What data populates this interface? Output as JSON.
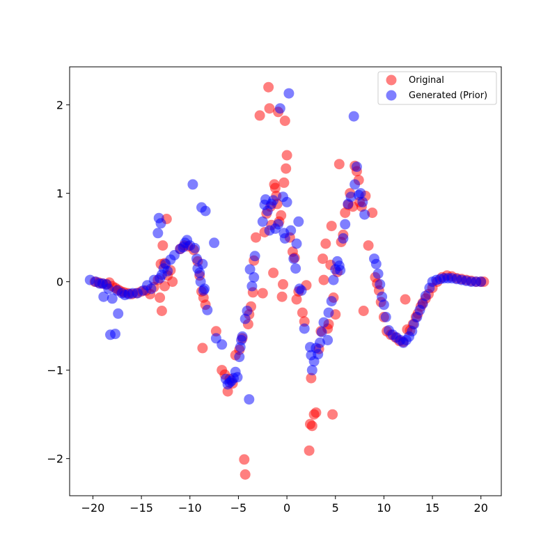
{
  "chart_data": {
    "type": "scatter",
    "xlim": [
      -22.4,
      22.1
    ],
    "ylim": [
      -2.42,
      2.43
    ],
    "grid": false,
    "legend_position": "top-right",
    "xticks": [
      -20,
      -15,
      -10,
      -5,
      0,
      5,
      10,
      15,
      20
    ],
    "xtick_labels": [
      "−20",
      "−15",
      "−10",
      "−5",
      "0",
      "5",
      "10",
      "15",
      "20"
    ],
    "yticks": [
      -2,
      -1,
      0,
      1,
      2
    ],
    "ytick_labels": [
      "−2",
      "−1",
      "0",
      "1",
      "2"
    ],
    "series": [
      {
        "name": "Original",
        "color": "#ff0000",
        "opacity": 0.5,
        "points": [
          [
            -19.8,
            0.0
          ],
          [
            -19.4,
            -0.01
          ],
          [
            -19.0,
            -0.02
          ],
          [
            -18.6,
            -0.03
          ],
          [
            -18.3,
            -0.01
          ],
          [
            -18.0,
            -0.05
          ],
          [
            -17.7,
            -0.07
          ],
          [
            -17.4,
            -0.09
          ],
          [
            -17.1,
            -0.11
          ],
          [
            -16.8,
            -0.12
          ],
          [
            -16.4,
            -0.13
          ],
          [
            -16.0,
            -0.14
          ],
          [
            -15.5,
            -0.13
          ],
          [
            -15.0,
            -0.11
          ],
          [
            -14.5,
            -0.1
          ],
          [
            -14.1,
            -0.14
          ],
          [
            -13.7,
            -0.06
          ],
          [
            -13.3,
            0.02
          ],
          [
            -13.1,
            -0.18
          ],
          [
            -12.9,
            -0.33
          ],
          [
            -13.0,
            0.2
          ],
          [
            -12.8,
            0.41
          ],
          [
            -12.6,
            0.21
          ],
          [
            -12.4,
            0.71
          ],
          [
            -12.6,
            -0.05
          ],
          [
            -12.3,
            0.07
          ],
          [
            -12.0,
            0.13
          ],
          [
            -11.8,
            0.0
          ],
          [
            -11.0,
            0.37
          ],
          [
            -10.6,
            0.41
          ],
          [
            -10.2,
            0.4
          ],
          [
            -9.6,
            0.36
          ],
          [
            -9.2,
            0.23
          ],
          [
            -9.0,
            0.07
          ],
          [
            -8.8,
            -0.11
          ],
          [
            -8.6,
            -0.18
          ],
          [
            -8.4,
            -0.26
          ],
          [
            -8.7,
            -0.75
          ],
          [
            -7.3,
            -0.56
          ],
          [
            -6.7,
            -1.0
          ],
          [
            -6.4,
            -1.05
          ],
          [
            -6.1,
            -1.24
          ],
          [
            -5.9,
            -1.1
          ],
          [
            -5.6,
            -1.15
          ],
          [
            -5.3,
            -0.83
          ],
          [
            -4.9,
            -0.77
          ],
          [
            -4.6,
            -0.64
          ],
          [
            -4.4,
            -2.01
          ],
          [
            -4.3,
            -2.18
          ],
          [
            -4.0,
            -0.48
          ],
          [
            -3.9,
            -0.37
          ],
          [
            -3.7,
            -0.28
          ],
          [
            -3.5,
            -0.12
          ],
          [
            -3.4,
            0.24
          ],
          [
            -3.2,
            0.5
          ],
          [
            -2.8,
            1.88
          ],
          [
            -2.5,
            -0.13
          ],
          [
            -2.3,
            0.56
          ],
          [
            -2.1,
            0.77
          ],
          [
            -1.9,
            2.2
          ],
          [
            -1.8,
            1.96
          ],
          [
            -1.7,
            0.85
          ],
          [
            -1.6,
            0.64
          ],
          [
            -1.4,
            0.1
          ],
          [
            -1.3,
            1.1
          ],
          [
            -1.2,
            1.06
          ],
          [
            -1.1,
            0.97
          ],
          [
            -1.0,
            0.88
          ],
          [
            -0.9,
            1.92
          ],
          [
            -0.8,
            0.68
          ],
          [
            -0.6,
            0.75
          ],
          [
            -0.5,
            -0.17
          ],
          [
            -0.4,
            -0.03
          ],
          [
            -0.3,
            1.12
          ],
          [
            -0.2,
            1.82
          ],
          [
            -0.1,
            1.28
          ],
          [
            0.0,
            1.43
          ],
          [
            0.3,
            0.5
          ],
          [
            0.6,
            0.34
          ],
          [
            0.8,
            0.27
          ],
          [
            1.0,
            -0.2
          ],
          [
            1.2,
            -0.11
          ],
          [
            1.6,
            -0.35
          ],
          [
            1.8,
            -0.45
          ],
          [
            2.0,
            -0.04
          ],
          [
            2.3,
            -1.91
          ],
          [
            2.4,
            -1.61
          ],
          [
            2.5,
            -1.09
          ],
          [
            2.6,
            -1.63
          ],
          [
            2.8,
            -1.5
          ],
          [
            3.0,
            -1.48
          ],
          [
            3.3,
            -0.76
          ],
          [
            3.5,
            -0.56
          ],
          [
            3.7,
            0.26
          ],
          [
            3.8,
            0.02
          ],
          [
            4.0,
            0.43
          ],
          [
            4.2,
            -0.53
          ],
          [
            4.3,
            -0.48
          ],
          [
            4.5,
            0.19
          ],
          [
            4.6,
            0.63
          ],
          [
            4.7,
            -1.5
          ],
          [
            4.8,
            -0.18
          ],
          [
            5.0,
            -0.37
          ],
          [
            5.2,
            0.11
          ],
          [
            5.4,
            1.33
          ],
          [
            5.6,
            0.45
          ],
          [
            5.8,
            0.53
          ],
          [
            6.0,
            0.78
          ],
          [
            6.3,
            0.87
          ],
          [
            6.5,
            1.0
          ],
          [
            6.8,
            0.85
          ],
          [
            7.0,
            1.31
          ],
          [
            7.2,
            1.25
          ],
          [
            7.4,
            1.15
          ],
          [
            7.5,
            0.9
          ],
          [
            7.7,
            0.85
          ],
          [
            7.9,
            -0.33
          ],
          [
            8.1,
            0.97
          ],
          [
            8.4,
            0.41
          ],
          [
            8.8,
            0.78
          ],
          [
            9.1,
            0.05
          ],
          [
            9.3,
            -0.02
          ],
          [
            9.5,
            -0.1
          ],
          [
            9.7,
            -0.23
          ],
          [
            10.0,
            -0.4
          ],
          [
            10.3,
            -0.56
          ],
          [
            10.7,
            -0.6
          ],
          [
            11.2,
            -0.63
          ],
          [
            11.6,
            -0.67
          ],
          [
            12.0,
            -0.68
          ],
          [
            12.2,
            -0.2
          ],
          [
            12.4,
            -0.54
          ],
          [
            12.7,
            -0.55
          ],
          [
            13.0,
            -0.48
          ],
          [
            13.3,
            -0.4
          ],
          [
            13.5,
            -0.36
          ],
          [
            13.8,
            -0.28
          ],
          [
            14.0,
            -0.24
          ],
          [
            14.3,
            -0.19
          ],
          [
            14.6,
            -0.14
          ],
          [
            15.0,
            -0.07
          ],
          [
            15.5,
            0.0
          ],
          [
            16.0,
            0.05
          ],
          [
            16.5,
            0.07
          ],
          [
            17.0,
            0.06
          ],
          [
            17.5,
            0.04
          ],
          [
            18.0,
            0.03
          ],
          [
            18.5,
            0.02
          ],
          [
            19.0,
            0.01
          ],
          [
            19.5,
            0.0
          ],
          [
            20.0,
            0.0
          ],
          [
            20.3,
            0.0
          ]
        ]
      },
      {
        "name": "Generated (Prior)",
        "color": "#0000ff",
        "opacity": 0.5,
        "points": [
          [
            -20.3,
            0.02
          ],
          [
            -19.7,
            0.0
          ],
          [
            -19.3,
            -0.02
          ],
          [
            -19.0,
            -0.02
          ],
          [
            -18.6,
            -0.03
          ],
          [
            -18.9,
            -0.17
          ],
          [
            -18.2,
            -0.6
          ],
          [
            -17.7,
            -0.59
          ],
          [
            -17.4,
            -0.36
          ],
          [
            -18.4,
            -0.08
          ],
          [
            -18.0,
            -0.19
          ],
          [
            -17.5,
            -0.1
          ],
          [
            -17.0,
            -0.13
          ],
          [
            -16.7,
            -0.15
          ],
          [
            -16.3,
            -0.14
          ],
          [
            -15.9,
            -0.13
          ],
          [
            -15.4,
            -0.13
          ],
          [
            -14.8,
            -0.1
          ],
          [
            -14.4,
            -0.04
          ],
          [
            -14.0,
            -0.08
          ],
          [
            -13.7,
            0.02
          ],
          [
            -13.3,
            0.55
          ],
          [
            -13.2,
            0.72
          ],
          [
            -13.0,
            0.66
          ],
          [
            -13.1,
            0.04
          ],
          [
            -12.9,
            0.08
          ],
          [
            -12.7,
            0.15
          ],
          [
            -12.5,
            0.2
          ],
          [
            -12.3,
            0.12
          ],
          [
            -12.0,
            0.25
          ],
          [
            -11.6,
            0.3
          ],
          [
            -11.0,
            0.37
          ],
          [
            -10.7,
            0.39
          ],
          [
            -10.5,
            0.44
          ],
          [
            -10.3,
            0.47
          ],
          [
            -10.0,
            0.41
          ],
          [
            -9.7,
            1.1
          ],
          [
            -9.5,
            0.38
          ],
          [
            -9.3,
            0.26
          ],
          [
            -9.2,
            0.15
          ],
          [
            -9.0,
            0.1
          ],
          [
            -8.9,
            0.0
          ],
          [
            -8.8,
            0.84
          ],
          [
            -8.4,
            0.8
          ],
          [
            -8.6,
            -0.1
          ],
          [
            -8.7,
            0.2
          ],
          [
            -8.5,
            -0.08
          ],
          [
            -8.2,
            -0.32
          ],
          [
            -7.5,
            0.44
          ],
          [
            -7.3,
            -0.64
          ],
          [
            -6.7,
            -0.71
          ],
          [
            -6.3,
            -1.1
          ],
          [
            -6.1,
            -1.16
          ],
          [
            -5.9,
            -1.14
          ],
          [
            -5.7,
            -1.12
          ],
          [
            -5.5,
            -1.09
          ],
          [
            -5.3,
            -1.02
          ],
          [
            -5.1,
            -1.08
          ],
          [
            -4.9,
            -0.85
          ],
          [
            -4.8,
            -0.74
          ],
          [
            -4.7,
            -0.66
          ],
          [
            -4.6,
            -0.62
          ],
          [
            -4.3,
            -0.42
          ],
          [
            -4.1,
            -0.33
          ],
          [
            -3.9,
            -1.33
          ],
          [
            -3.8,
            0.14
          ],
          [
            -3.6,
            -0.05
          ],
          [
            -3.4,
            0.05
          ],
          [
            -3.3,
            0.29
          ],
          [
            -2.5,
            0.68
          ],
          [
            -2.3,
            0.87
          ],
          [
            -2.2,
            0.93
          ],
          [
            -2.0,
            0.8
          ],
          [
            -1.8,
            0.58
          ],
          [
            -1.6,
            0.88
          ],
          [
            -1.4,
            0.92
          ],
          [
            -1.2,
            0.6
          ],
          [
            -0.9,
            0.65
          ],
          [
            -0.7,
            1.96
          ],
          [
            -0.4,
            0.96
          ],
          [
            -0.3,
            0.55
          ],
          [
            -0.2,
            0.49
          ],
          [
            0.0,
            0.9
          ],
          [
            0.2,
            2.13
          ],
          [
            0.4,
            0.58
          ],
          [
            0.7,
            0.26
          ],
          [
            0.9,
            0.15
          ],
          [
            1.0,
            0.43
          ],
          [
            1.2,
            0.68
          ],
          [
            1.3,
            -0.08
          ],
          [
            1.5,
            -0.1
          ],
          [
            1.8,
            -0.53
          ],
          [
            2.4,
            -0.74
          ],
          [
            2.5,
            -0.83
          ],
          [
            2.6,
            -1.0
          ],
          [
            2.8,
            -0.9
          ],
          [
            3.0,
            -0.75
          ],
          [
            3.2,
            -0.82
          ],
          [
            3.4,
            -0.69
          ],
          [
            3.6,
            -0.57
          ],
          [
            3.8,
            -0.46
          ],
          [
            4.2,
            -0.66
          ],
          [
            4.3,
            -0.35
          ],
          [
            4.6,
            -0.22
          ],
          [
            4.8,
            0.02
          ],
          [
            5.0,
            0.14
          ],
          [
            5.2,
            0.23
          ],
          [
            5.4,
            0.18
          ],
          [
            5.5,
            0.13
          ],
          [
            5.8,
            0.49
          ],
          [
            6.0,
            0.65
          ],
          [
            6.3,
            0.88
          ],
          [
            6.6,
            0.96
          ],
          [
            6.9,
            1.87
          ],
          [
            7.0,
            1.1
          ],
          [
            7.2,
            1.3
          ],
          [
            7.4,
            0.98
          ],
          [
            7.6,
            1.0
          ],
          [
            7.8,
            0.9
          ],
          [
            8.0,
            0.76
          ],
          [
            9.0,
            0.26
          ],
          [
            9.2,
            0.2
          ],
          [
            9.4,
            0.09
          ],
          [
            9.6,
            -0.03
          ],
          [
            9.8,
            -0.17
          ],
          [
            10.0,
            -0.26
          ],
          [
            10.2,
            -0.4
          ],
          [
            10.5,
            -0.55
          ],
          [
            10.9,
            -0.6
          ],
          [
            11.3,
            -0.63
          ],
          [
            11.7,
            -0.66
          ],
          [
            12.0,
            -0.69
          ],
          [
            12.3,
            -0.66
          ],
          [
            12.6,
            -0.62
          ],
          [
            12.9,
            -0.56
          ],
          [
            13.1,
            -0.48
          ],
          [
            13.4,
            -0.4
          ],
          [
            13.7,
            -0.32
          ],
          [
            14.0,
            -0.25
          ],
          [
            14.3,
            -0.16
          ],
          [
            14.7,
            -0.07
          ],
          [
            15.0,
            0.0
          ],
          [
            15.4,
            0.02
          ],
          [
            15.8,
            0.03
          ],
          [
            16.2,
            0.04
          ],
          [
            16.6,
            0.04
          ],
          [
            17.0,
            0.04
          ],
          [
            17.5,
            0.03
          ],
          [
            18.0,
            0.02
          ],
          [
            18.5,
            0.01
          ],
          [
            19.0,
            0.0
          ],
          [
            19.5,
            0.0
          ],
          [
            20.0,
            0.0
          ]
        ]
      }
    ]
  }
}
